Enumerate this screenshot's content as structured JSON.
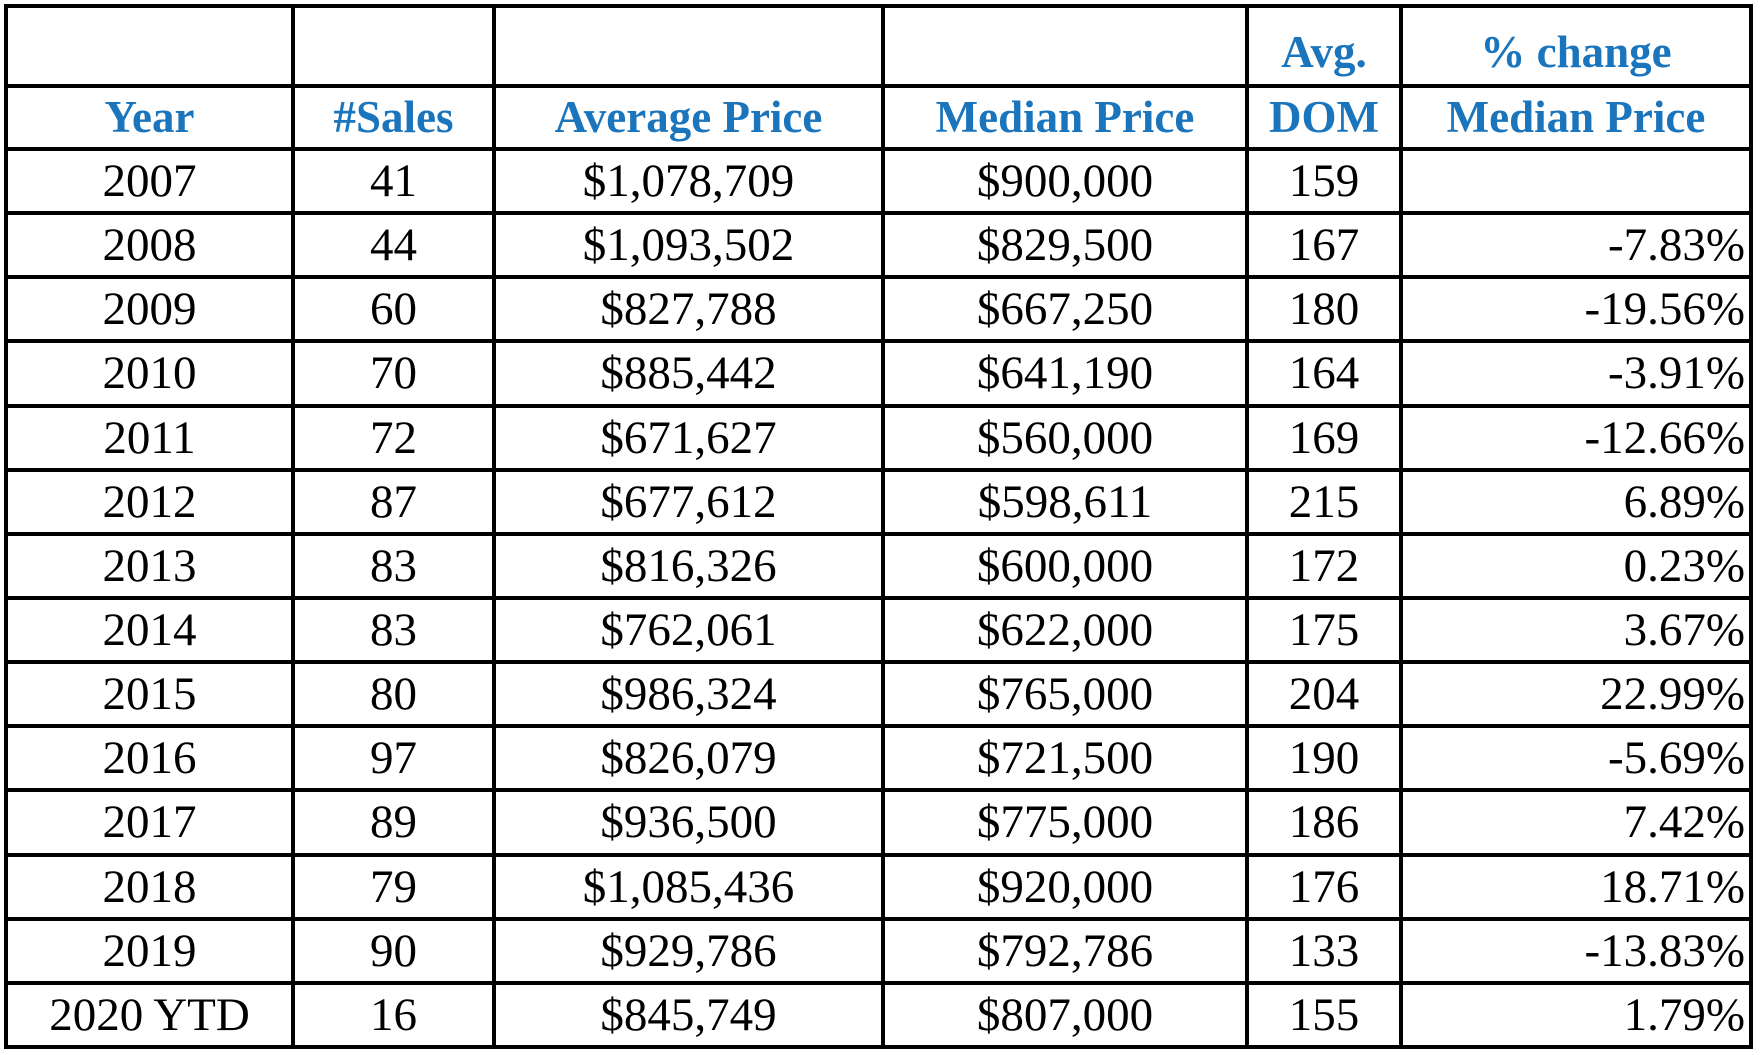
{
  "table": {
    "header_top": [
      null,
      null,
      null,
      null,
      "Avg.",
      "% change"
    ],
    "header": [
      "Year",
      "#Sales",
      "Average Price",
      "Median Price",
      "DOM",
      "Median Price"
    ],
    "rows": [
      [
        "2007",
        "41",
        "$1,078,709",
        "$900,000",
        "159",
        null
      ],
      [
        "2008",
        "44",
        "$1,093,502",
        "$829,500",
        "167",
        "-7.83%"
      ],
      [
        "2009",
        "60",
        "$827,788",
        "$667,250",
        "180",
        "-19.56%"
      ],
      [
        "2010",
        "70",
        "$885,442",
        "$641,190",
        "164",
        "-3.91%"
      ],
      [
        "2011",
        "72",
        "$671,627",
        "$560,000",
        "169",
        "-12.66%"
      ],
      [
        "2012",
        "87",
        "$677,612",
        "$598,611",
        "215",
        "6.89%"
      ],
      [
        "2013",
        "83",
        "$816,326",
        "$600,000",
        "172",
        "0.23%"
      ],
      [
        "2014",
        "83",
        "$762,061",
        "$622,000",
        "175",
        "3.67%"
      ],
      [
        "2015",
        "80",
        "$986,324",
        "$765,000",
        "204",
        "22.99%"
      ],
      [
        "2016",
        "97",
        "$826,079",
        "$721,500",
        "190",
        "-5.69%"
      ],
      [
        "2017",
        "89",
        "$936,500",
        "$775,000",
        "186",
        "7.42%"
      ],
      [
        "2018",
        "79",
        "$1,085,436",
        "$920,000",
        "176",
        "18.71%"
      ],
      [
        "2019",
        "90",
        "$929,786",
        "$792,786",
        "133",
        "-13.83%"
      ],
      [
        "2020 YTD",
        "16",
        "$845,749",
        "$807,000",
        "155",
        "1.79%"
      ]
    ]
  }
}
